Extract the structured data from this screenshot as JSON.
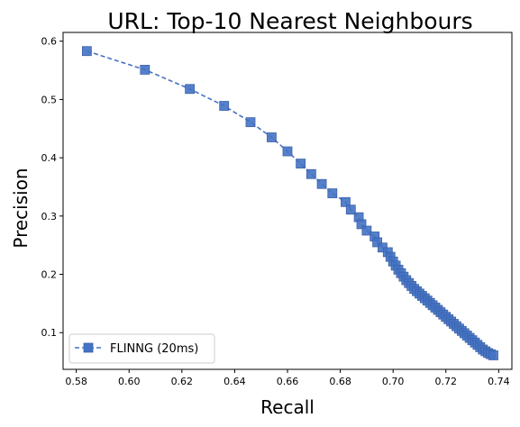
{
  "chart_data": {
    "type": "line",
    "title": "URL: Top-10 Nearest Neighbours",
    "xlabel": "Recall",
    "ylabel": "Precision",
    "xlim": [
      0.575,
      0.745
    ],
    "ylim": [
      0.037,
      0.615
    ],
    "xticks": [
      0.58,
      0.6,
      0.62,
      0.64,
      0.66,
      0.68,
      0.7,
      0.72,
      0.74
    ],
    "xtick_labels": [
      "0.58",
      "0.60",
      "0.62",
      "0.64",
      "0.66",
      "0.68",
      "0.70",
      "0.72",
      "0.74"
    ],
    "yticks": [
      0.1,
      0.2,
      0.3,
      0.4,
      0.5,
      0.6
    ],
    "ytick_labels": [
      "0.1",
      "0.2",
      "0.3",
      "0.4",
      "0.5",
      "0.6"
    ],
    "grid": false,
    "legend_position": "lower-left",
    "series": [
      {
        "name": "FLINNG (20ms)",
        "color": "#4472C4",
        "marker": "square",
        "linestyle": "dashed",
        "x": [
          0.584,
          0.606,
          0.623,
          0.636,
          0.646,
          0.654,
          0.66,
          0.665,
          0.669,
          0.673,
          0.677,
          0.682,
          0.684,
          0.687,
          0.688,
          0.69,
          0.693,
          0.694,
          0.696,
          0.698,
          0.699,
          0.7,
          0.701,
          0.702,
          0.703,
          0.704,
          0.705,
          0.706,
          0.707,
          0.708,
          0.709,
          0.71,
          0.711,
          0.712,
          0.713,
          0.714,
          0.715,
          0.716,
          0.717,
          0.718,
          0.719,
          0.72,
          0.721,
          0.722,
          0.723,
          0.724,
          0.725,
          0.726,
          0.727,
          0.728,
          0.729,
          0.73,
          0.731,
          0.732,
          0.733,
          0.734,
          0.735,
          0.736,
          0.737,
          0.738
        ],
        "y": [
          0.583,
          0.551,
          0.518,
          0.489,
          0.461,
          0.435,
          0.411,
          0.39,
          0.372,
          0.355,
          0.339,
          0.324,
          0.311,
          0.298,
          0.286,
          0.275,
          0.265,
          0.255,
          0.246,
          0.238,
          0.23,
          0.222,
          0.215,
          0.208,
          0.202,
          0.196,
          0.19,
          0.185,
          0.18,
          0.175,
          0.171,
          0.167,
          0.163,
          0.159,
          0.155,
          0.151,
          0.147,
          0.143,
          0.139,
          0.135,
          0.131,
          0.127,
          0.123,
          0.119,
          0.115,
          0.111,
          0.107,
          0.103,
          0.099,
          0.095,
          0.091,
          0.087,
          0.083,
          0.079,
          0.075,
          0.071,
          0.068,
          0.065,
          0.063,
          0.061
        ]
      }
    ]
  }
}
